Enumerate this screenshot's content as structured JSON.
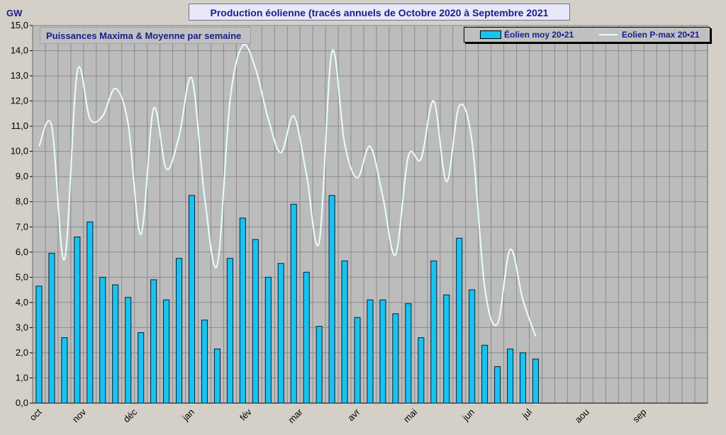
{
  "title": "Production éolienne (tracés annuels de Octobre 2020 à Septembre 2021",
  "subtitle": "Puissances Maxima & Moyenne par semaine",
  "unit": "GW",
  "colors": {
    "plot_bg": "#bcbcbc",
    "grid": "#8a8a8a",
    "bar": "#19c3ef",
    "line": "#e8ffff",
    "text": "#1c1c8c"
  },
  "chart_data": {
    "type": "bar",
    "ylim": [
      0,
      15
    ],
    "grid": true,
    "legend_position": "top-right",
    "y_ticks": [
      "0,0",
      "1,0",
      "2,0",
      "3,0",
      "4,0",
      "5,0",
      "6,0",
      "7,0",
      "8,0",
      "9,0",
      "10,0",
      "11,0",
      "12,0",
      "13,0",
      "14,0",
      "15,0"
    ],
    "month_labels": [
      "oct",
      "nov",
      "déc",
      "jan",
      "fév",
      "mar",
      "avr",
      "mai",
      "jun",
      "jul",
      "aou",
      "sep"
    ],
    "month_week_index": [
      0,
      3.5,
      7.5,
      12,
      16.5,
      20.5,
      25,
      29.5,
      34,
      38.5,
      43,
      47.5
    ],
    "week_count": 53,
    "series": [
      {
        "name": "Éolien moy 20•21",
        "kind": "bar",
        "values": [
          4.65,
          5.95,
          2.6,
          6.6,
          7.2,
          5.0,
          4.7,
          4.2,
          2.8,
          4.9,
          4.1,
          5.75,
          8.25,
          3.3,
          2.15,
          5.75,
          7.35,
          6.5,
          5.0,
          5.55,
          7.9,
          5.2,
          3.05,
          8.25,
          5.65,
          3.4,
          4.1,
          4.1,
          3.55,
          3.95,
          2.6,
          5.65,
          4.3,
          6.55,
          4.5,
          2.3,
          1.45,
          2.15,
          2.0,
          1.75
        ]
      },
      {
        "name": "Eolien P·max 20•21",
        "kind": "line",
        "values": [
          10.2,
          11.0,
          5.7,
          13.15,
          11.3,
          11.4,
          12.5,
          11.1,
          6.7,
          11.7,
          9.3,
          10.6,
          12.9,
          8.2,
          5.5,
          12.0,
          14.2,
          13.3,
          11.3,
          9.95,
          11.4,
          9.1,
          6.4,
          13.95,
          10.3,
          8.95,
          10.2,
          8.2,
          5.9,
          9.8,
          9.7,
          12.0,
          8.8,
          11.8,
          10.4,
          4.6,
          3.15,
          6.1,
          4.1,
          2.65
        ]
      }
    ]
  }
}
